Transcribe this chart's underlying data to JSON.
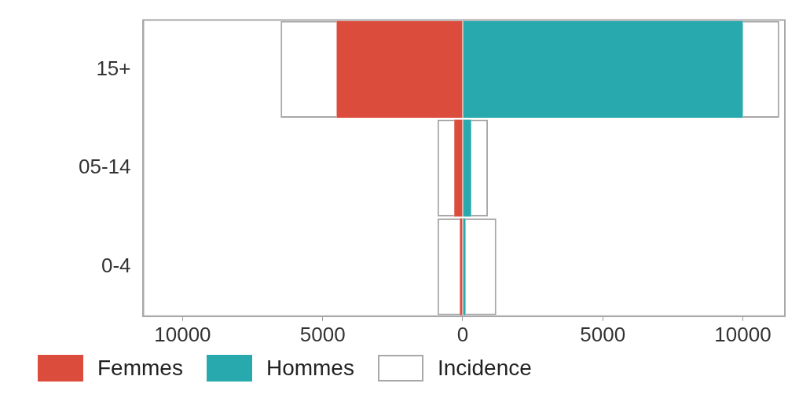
{
  "chart_data": {
    "type": "bar",
    "orientation": "horizontal",
    "stacked": true,
    "categories": [
      "15+",
      "05-14",
      "0-4"
    ],
    "series": [
      {
        "name": "Femmes",
        "color": "#dc4c3c",
        "values": [
          -4500,
          -300,
          -100
        ]
      },
      {
        "name": "Hommes",
        "color": "#27a9ad",
        "values": [
          10000,
          300,
          100
        ]
      },
      {
        "name": "Incidence",
        "color": "#ffffff",
        "values": [
          -2000,
          -600,
          -800
        ]
      },
      {
        "color": "#ffffff",
        "values": [
          1300,
          600,
          1100
        ]
      }
    ],
    "xlim": [
      -11400,
      11500
    ],
    "xticks": [
      {
        "value": -10000,
        "label": "10000"
      },
      {
        "value": -5000,
        "label": "5000"
      },
      0,
      5000,
      10000
    ],
    "grid": false,
    "legend": "bottom"
  }
}
